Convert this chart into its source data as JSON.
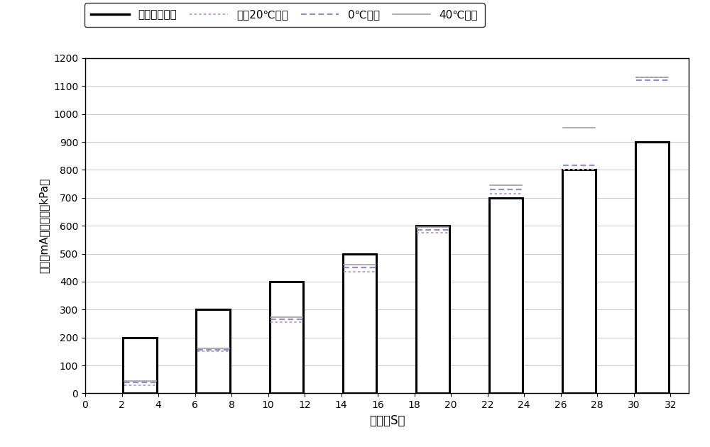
{
  "bar_centers": [
    3,
    7,
    11,
    15,
    19,
    23,
    27,
    31
  ],
  "bar_heights": [
    200,
    300,
    400,
    500,
    600,
    700,
    800,
    900
  ],
  "bar_width": 1.85,
  "bar_color": "white",
  "bar_edgecolor": "black",
  "bar_linewidth": 2.2,
  "pressure_neg20": [
    30,
    150,
    255,
    435,
    575,
    715,
    800,
    1130
  ],
  "pressure_0": [
    38,
    157,
    265,
    450,
    585,
    730,
    815,
    1120
  ],
  "pressure_40": [
    44,
    162,
    272,
    460,
    595,
    745,
    950,
    1130
  ],
  "xlim": [
    0,
    33
  ],
  "ylim": [
    0,
    1200
  ],
  "xticks": [
    0,
    2,
    4,
    6,
    8,
    10,
    12,
    14,
    16,
    18,
    20,
    22,
    24,
    26,
    28,
    30,
    32
  ],
  "yticks": [
    0,
    100,
    200,
    300,
    400,
    500,
    600,
    700,
    800,
    900,
    1000,
    1100,
    1200
  ],
  "xlabel": "时间（S）",
  "ylabel": "电流（mA）及压力（kPa）",
  "grid_color": "#cccccc",
  "legend_labels": [
    "脉冲驱动电流",
    "零下20℃压力",
    "0℃压力",
    "40℃压力"
  ],
  "hline_neg20_color": "#c8a0c8",
  "hline_0_color": "#9090c8",
  "hline_40_color": "#a0a0a0",
  "bg_color": "white",
  "figsize": [
    10.0,
    6.3
  ],
  "dpi": 100
}
